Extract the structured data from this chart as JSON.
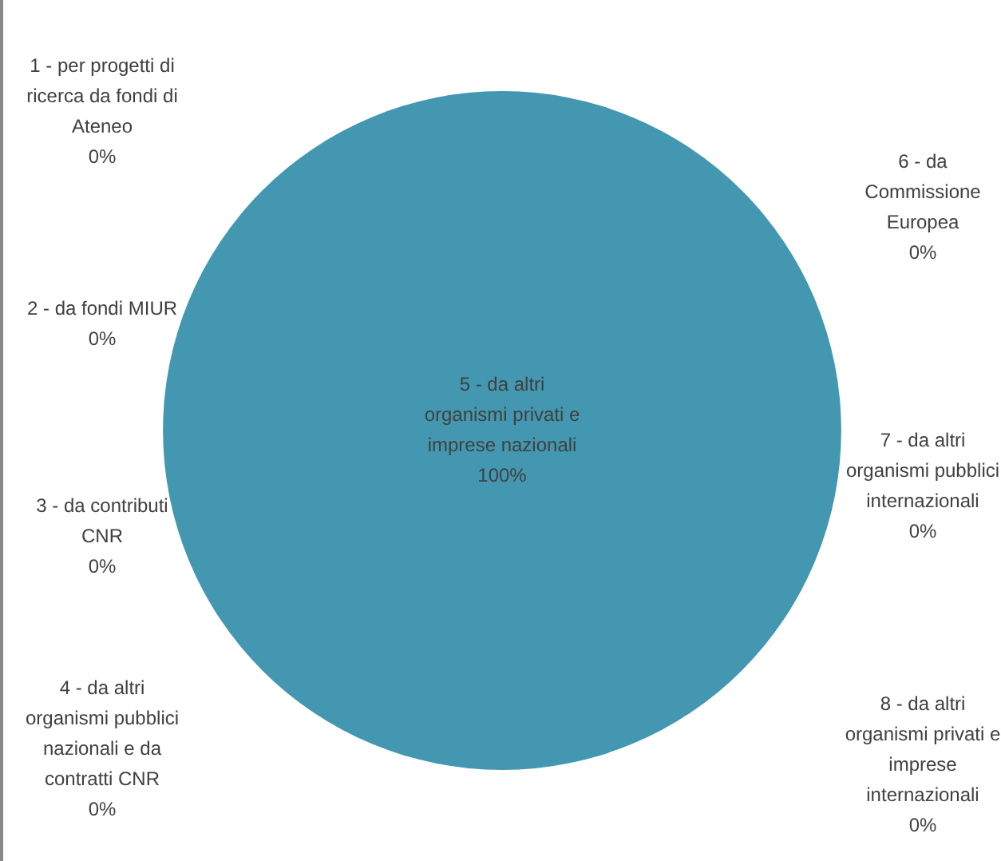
{
  "chart_data": {
    "type": "pie",
    "categories": [
      "1 - per progetti di ricerca da fondi di Ateneo",
      "2 - da fondi MIUR",
      "3 - da contributi CNR",
      "4 - da altri organismi pubblici nazionali e da contratti CNR",
      "5 - da altri organismi privati e imprese nazionali",
      "6 - da Commissione Europea",
      "7 - da altri organismi pubblici internazionali",
      "8 - da altri organismi privati e imprese internazionali"
    ],
    "values": [
      0,
      0,
      0,
      0,
      100,
      0,
      0,
      0
    ],
    "colors": [
      "#4397b0",
      "#4397b0",
      "#4397b0",
      "#4397b0",
      "#4397b0",
      "#4397b0",
      "#4397b0",
      "#4397b0"
    ],
    "value_labels": [
      "0%",
      "0%",
      "0%",
      "0%",
      "100%",
      "0%",
      "0%",
      "0%"
    ],
    "legend": false
  }
}
